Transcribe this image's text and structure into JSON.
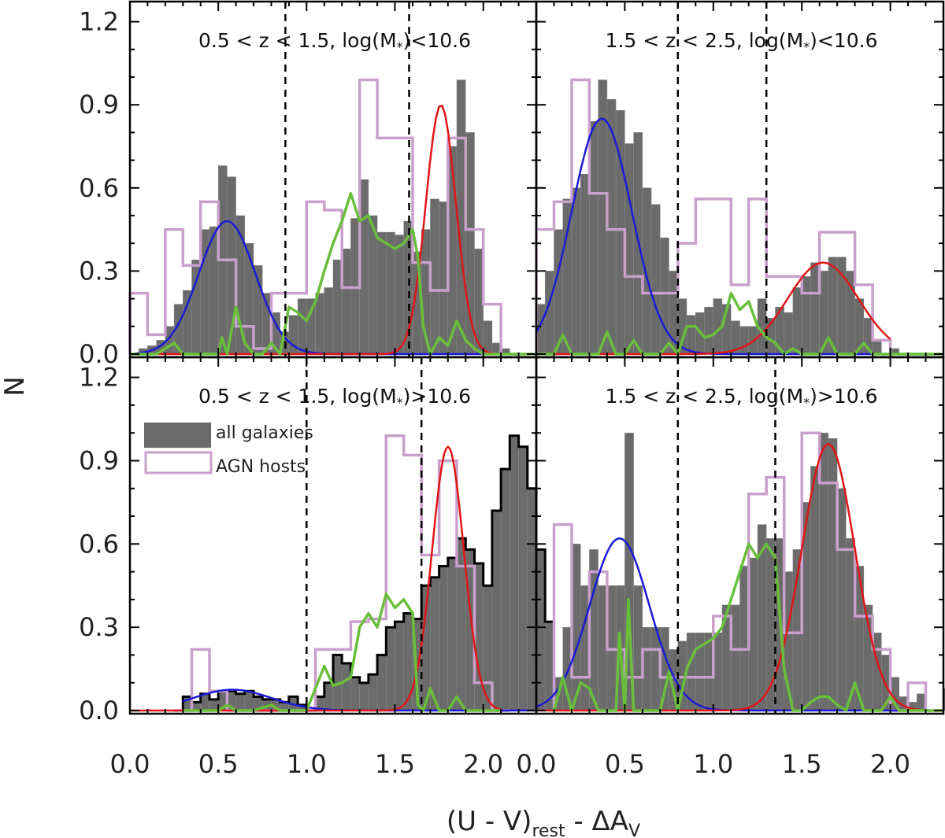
{
  "chart_data": {
    "type": "bar",
    "ylabel": "N",
    "xlabel": {
      "main": "(U - V)",
      "sub": "rest",
      "mid": " - ΔA",
      "sub2": "V"
    },
    "ylim": [
      0,
      1.25
    ],
    "yticks": [
      "0.0",
      "0.3",
      "0.6",
      "0.9",
      "1.2"
    ],
    "xticks_left": [
      "0.0",
      "0.5",
      "1.0",
      "1.5",
      "2.0"
    ],
    "xticks_right": [
      "0.0",
      "0.5",
      "1.0",
      "1.5",
      "2.0"
    ],
    "colors": {
      "bars": "#6b6b6b",
      "agn": "#c9a0cc",
      "blue": "#1a1ad6",
      "red": "#e01616",
      "green": "#6abf3a"
    },
    "legend": {
      "all": "all galaxies",
      "agn": "AGN hosts"
    },
    "panels": [
      {
        "id": "tl",
        "title_pre": "0.5 < z < 1.5, log(M",
        "title_sub": "*",
        "title_post": ")<10.6",
        "xlim": [
          0,
          2.3
        ],
        "dashed": [
          0.88,
          1.58
        ],
        "bin_width": 0.05,
        "bar_start": 0.05,
        "bars": [
          0.02,
          0.03,
          0.05,
          0.1,
          0.18,
          0.23,
          0.34,
          0.45,
          0.46,
          0.68,
          0.64,
          0.5,
          0.4,
          0.32,
          0.22,
          0.15,
          0.08,
          0.14,
          0.2,
          0.2,
          0.22,
          0.24,
          0.34,
          0.38,
          0.49,
          0.63,
          0.5,
          0.44,
          0.44,
          0.43,
          0.48,
          0.37,
          0.45,
          0.56,
          0.55,
          0.75,
          0.99,
          0.8,
          0.38,
          0.12,
          0.04,
          0.02
        ],
        "agn": {
          "start": 0.0,
          "width": 0.1,
          "values": [
            0.22,
            0.07,
            0.45,
            0.32,
            0.55,
            0.34,
            0.1,
            0.02,
            0.22,
            0.22,
            0.55,
            0.52,
            0.24,
            0.99,
            0.78,
            0.78,
            0.33,
            0.23,
            0.78,
            0.45,
            0.18
          ]
        },
        "blue": {
          "mu": 0.55,
          "sigma": 0.16,
          "amp": 0.48,
          "x0": 0.03,
          "x1": 1.6
        },
        "red": {
          "mu": 1.76,
          "sigma": 0.085,
          "amp": 0.9,
          "x0": 0.0,
          "x1": 2.1
        },
        "green": [
          [
            0.0,
            0.0
          ],
          [
            0.15,
            0.0
          ],
          [
            0.2,
            0.02
          ],
          [
            0.25,
            0.04
          ],
          [
            0.3,
            0.0
          ],
          [
            0.4,
            0.0
          ],
          [
            0.5,
            0.0
          ],
          [
            0.52,
            0.06
          ],
          [
            0.55,
            0.0
          ],
          [
            0.6,
            0.17
          ],
          [
            0.65,
            0.04
          ],
          [
            0.7,
            0.0
          ],
          [
            0.75,
            0.0
          ],
          [
            0.8,
            0.04
          ],
          [
            0.85,
            0.0
          ],
          [
            0.9,
            0.17
          ],
          [
            0.95,
            0.15
          ],
          [
            1.0,
            0.12
          ],
          [
            1.05,
            0.19
          ],
          [
            1.1,
            0.3
          ],
          [
            1.15,
            0.4
          ],
          [
            1.2,
            0.48
          ],
          [
            1.25,
            0.58
          ],
          [
            1.3,
            0.48
          ],
          [
            1.35,
            0.5
          ],
          [
            1.4,
            0.42
          ],
          [
            1.45,
            0.4
          ],
          [
            1.5,
            0.38
          ],
          [
            1.55,
            0.4
          ],
          [
            1.6,
            0.45
          ],
          [
            1.63,
            0.35
          ],
          [
            1.66,
            0.1
          ],
          [
            1.7,
            0.0
          ],
          [
            1.75,
            0.06
          ],
          [
            1.8,
            0.03
          ],
          [
            1.85,
            0.12
          ],
          [
            1.9,
            0.05
          ],
          [
            1.95,
            0.02
          ],
          [
            2.0,
            0.0
          ],
          [
            2.3,
            0.0
          ]
        ]
      },
      {
        "id": "tr",
        "title_pre": "1.5 < z < 2.5, log(M",
        "title_sub": "*",
        "title_post": ")<10.6",
        "xlim": [
          0,
          2.3
        ],
        "dashed": [
          0.8,
          1.3
        ],
        "bin_width": 0.05,
        "bar_start": 0.0,
        "bars": [
          0.18,
          0.3,
          0.45,
          0.56,
          0.6,
          0.65,
          0.84,
          0.99,
          0.92,
          0.88,
          0.76,
          0.8,
          0.6,
          0.54,
          0.42,
          0.3,
          0.2,
          0.14,
          0.15,
          0.17,
          0.2,
          0.18,
          0.12,
          0.1,
          0.1,
          0.2,
          0.13,
          0.17,
          0.15,
          0.24,
          0.28,
          0.33,
          0.3,
          0.35,
          0.35,
          0.3,
          0.2,
          0.13,
          0.05,
          0.0,
          0.02
        ],
        "agn": {
          "start": 0.0,
          "width": 0.1,
          "values": [
            0.45,
            0.55,
            0.99,
            0.58,
            0.45,
            0.28,
            0.22,
            0.22,
            0.4,
            0.56,
            0.56,
            0.25,
            0.56,
            0.28,
            0.28,
            0.22,
            0.44,
            0.44,
            0.25,
            0.05
          ]
        },
        "blue": {
          "mu": 0.37,
          "sigma": 0.17,
          "amp": 0.85,
          "x0": 0.0,
          "x1": 1.45
        },
        "red": {
          "mu": 1.62,
          "sigma": 0.2,
          "amp": 0.33,
          "x0": 0.8,
          "x1": 2.0
        },
        "green": [
          [
            0.0,
            0.0
          ],
          [
            0.1,
            0.0
          ],
          [
            0.15,
            0.07
          ],
          [
            0.2,
            0.0
          ],
          [
            0.35,
            0.0
          ],
          [
            0.4,
            0.08
          ],
          [
            0.45,
            0.0
          ],
          [
            0.5,
            0.0
          ],
          [
            0.55,
            0.05
          ],
          [
            0.6,
            0.0
          ],
          [
            0.7,
            0.0
          ],
          [
            0.75,
            0.04
          ],
          [
            0.8,
            0.0
          ],
          [
            0.85,
            0.1
          ],
          [
            0.9,
            0.1
          ],
          [
            0.95,
            0.06
          ],
          [
            1.0,
            0.07
          ],
          [
            1.05,
            0.1
          ],
          [
            1.1,
            0.22
          ],
          [
            1.15,
            0.16
          ],
          [
            1.2,
            0.19
          ],
          [
            1.25,
            0.1
          ],
          [
            1.3,
            0.06
          ],
          [
            1.35,
            0.04
          ],
          [
            1.4,
            0.0
          ],
          [
            1.45,
            0.02
          ],
          [
            1.5,
            0.0
          ],
          [
            1.6,
            0.0
          ],
          [
            1.65,
            0.06
          ],
          [
            1.7,
            0.0
          ],
          [
            1.8,
            0.0
          ],
          [
            1.85,
            0.04
          ],
          [
            1.9,
            0.0
          ],
          [
            2.3,
            0.0
          ]
        ]
      },
      {
        "id": "bl",
        "title_pre": "0.5 < z < 1.5, log(M",
        "title_sub": "*",
        "title_post": ")>10.6",
        "xlim": [
          0,
          2.3
        ],
        "dashed": [
          1.0,
          1.65
        ],
        "bin_width": 0.05,
        "bar_start": 0.3,
        "bars": [
          0.05,
          0.03,
          0.06,
          0.04,
          0.07,
          0.07,
          0.06,
          0.07,
          0.05,
          0.04,
          0.04,
          0.03,
          0.05,
          0.02,
          0.0,
          0.05,
          0.1,
          0.2,
          0.17,
          0.12,
          0.1,
          0.13,
          0.2,
          0.3,
          0.32,
          0.35,
          0.33,
          0.45,
          0.48,
          0.52,
          0.55,
          0.62,
          0.58,
          0.53,
          0.45,
          0.72,
          0.87,
          0.99,
          0.95,
          0.8,
          0.58,
          0.32,
          0.1,
          0.03,
          0.02
        ],
        "agn": {
          "start": 0.25,
          "width": 0.1,
          "values": [
            0.0,
            0.22,
            0.07,
            0.0,
            0.0,
            0.0,
            0.0,
            0.0,
            0.22,
            0.22,
            0.32,
            0.33,
            0.99,
            0.92,
            0.56,
            0.9,
            0.52,
            0.1,
            0.0
          ]
        },
        "blue": {
          "mu": 0.58,
          "sigma": 0.22,
          "amp": 0.075,
          "x0": 0.3,
          "x1": 1.5
        },
        "red": {
          "mu": 1.8,
          "sigma": 0.09,
          "amp": 0.95,
          "x0": 0.9,
          "x1": 2.1
        },
        "green": [
          [
            0.3,
            0.0
          ],
          [
            0.5,
            0.0
          ],
          [
            0.55,
            0.02
          ],
          [
            0.6,
            0.0
          ],
          [
            0.7,
            0.0
          ],
          [
            0.8,
            0.02
          ],
          [
            0.85,
            0.0
          ],
          [
            1.0,
            0.0
          ],
          [
            1.05,
            0.08
          ],
          [
            1.1,
            0.16
          ],
          [
            1.15,
            0.09
          ],
          [
            1.2,
            0.1
          ],
          [
            1.25,
            0.12
          ],
          [
            1.3,
            0.3
          ],
          [
            1.35,
            0.35
          ],
          [
            1.4,
            0.3
          ],
          [
            1.45,
            0.42
          ],
          [
            1.5,
            0.37
          ],
          [
            1.55,
            0.4
          ],
          [
            1.6,
            0.35
          ],
          [
            1.63,
            0.02
          ],
          [
            1.66,
            0.0
          ],
          [
            1.7,
            0.08
          ],
          [
            1.75,
            0.0
          ],
          [
            1.8,
            0.0
          ],
          [
            1.85,
            0.05
          ],
          [
            1.9,
            0.0
          ],
          [
            2.1,
            0.0
          ]
        ]
      },
      {
        "id": "br",
        "title_pre": "1.5 < z < 2.5, log(M",
        "title_sub": "*",
        "title_post": ")>10.6",
        "xlim": [
          0,
          2.3
        ],
        "dashed": [
          0.8,
          1.35
        ],
        "bin_width": 0.05,
        "bar_start": 0.1,
        "bars": [
          0.12,
          0.3,
          0.6,
          0.45,
          0.58,
          0.45,
          0.45,
          0.45,
          1.0,
          0.45,
          0.3,
          0.3,
          0.3,
          0.22,
          0.25,
          0.28,
          0.28,
          0.28,
          0.28,
          0.38,
          0.38,
          0.52,
          0.55,
          0.67,
          0.62,
          0.62,
          0.5,
          0.58,
          0.75,
          0.88,
          1.0,
          0.98,
          0.8,
          0.62,
          0.52,
          0.38,
          0.28,
          0.2,
          0.12,
          0.05,
          0.03,
          0.06,
          0.0,
          0.0,
          0.08
        ],
        "agn": {
          "start": 0.1,
          "width": 0.1,
          "values": [
            0.67,
            0.12,
            0.5,
            0.22,
            0.12,
            0.22,
            0.12,
            0.12,
            0.12,
            0.34,
            0.22,
            0.78,
            0.84,
            0.28,
            1.0,
            0.82,
            0.58,
            0.34,
            0.22,
            0.0,
            0.1
          ]
        },
        "blue": {
          "mu": 0.47,
          "sigma": 0.17,
          "amp": 0.62,
          "x0": 0.0,
          "x1": 1.3
        },
        "red": {
          "mu": 1.65,
          "sigma": 0.15,
          "amp": 0.96,
          "x0": 0.7,
          "x1": 2.3
        },
        "green": [
          [
            0.1,
            0.0
          ],
          [
            0.15,
            0.12
          ],
          [
            0.2,
            0.0
          ],
          [
            0.25,
            0.1
          ],
          [
            0.3,
            0.08
          ],
          [
            0.35,
            0.0
          ],
          [
            0.4,
            0.0
          ],
          [
            0.45,
            0.0
          ],
          [
            0.47,
            0.28
          ],
          [
            0.5,
            0.0
          ],
          [
            0.52,
            0.4
          ],
          [
            0.55,
            0.0
          ],
          [
            0.6,
            0.0
          ],
          [
            0.7,
            0.0
          ],
          [
            0.75,
            0.14
          ],
          [
            0.8,
            0.0
          ],
          [
            0.85,
            0.15
          ],
          [
            0.9,
            0.22
          ],
          [
            0.95,
            0.24
          ],
          [
            1.0,
            0.26
          ],
          [
            1.05,
            0.3
          ],
          [
            1.1,
            0.4
          ],
          [
            1.15,
            0.5
          ],
          [
            1.2,
            0.6
          ],
          [
            1.25,
            0.55
          ],
          [
            1.3,
            0.6
          ],
          [
            1.35,
            0.55
          ],
          [
            1.4,
            0.15
          ],
          [
            1.45,
            0.0
          ],
          [
            1.5,
            0.0
          ],
          [
            1.55,
            0.03
          ],
          [
            1.6,
            0.05
          ],
          [
            1.65,
            0.05
          ],
          [
            1.7,
            0.02
          ],
          [
            1.75,
            0.0
          ],
          [
            1.8,
            0.1
          ],
          [
            1.85,
            0.0
          ],
          [
            1.95,
            0.0
          ],
          [
            2.0,
            0.05
          ],
          [
            2.05,
            0.0
          ],
          [
            2.3,
            0.0
          ]
        ]
      }
    ]
  }
}
